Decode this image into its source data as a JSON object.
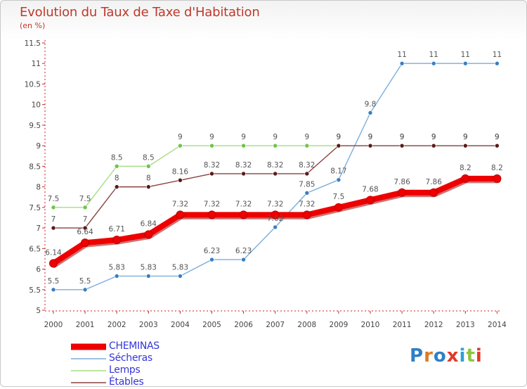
{
  "header": {
    "title": "Evolution du Taux de Taxe d'Habitation",
    "subtitle": "(en %)"
  },
  "chart_data": {
    "type": "line",
    "x": [
      2000,
      2001,
      2002,
      2003,
      2004,
      2005,
      2006,
      2007,
      2008,
      2009,
      2010,
      2011,
      2012,
      2013,
      2014
    ],
    "ylim": [
      5,
      11.5
    ],
    "yticks": [
      "5",
      "5.5",
      "6",
      "6.5",
      "7",
      "7.5",
      "8",
      "8.5",
      "9",
      "9.5",
      "10",
      "10.5",
      "11",
      "11.5"
    ],
    "xlabel": "",
    "ylabel": "",
    "grid": false,
    "legend_position": "bottom-left",
    "series": [
      {
        "name": "Sécheras",
        "color": "#7aaedb",
        "marker": "#3a7fc1",
        "values": [
          5.5,
          5.5,
          5.83,
          5.83,
          5.83,
          6.23,
          6.23,
          7.02,
          7.85,
          8.17,
          9.8,
          11,
          11,
          11,
          11
        ],
        "labels": [
          "5.5",
          "5.5",
          "5.83",
          "5.83",
          "5.83",
          "6.23",
          "6.23",
          "7.02",
          "7.85",
          "8.17",
          "9.8",
          "11",
          "11",
          "11",
          "11"
        ]
      },
      {
        "name": "Lemps",
        "color": "#a6dd84",
        "marker": "#6ec447",
        "values": [
          7.5,
          7.5,
          8.5,
          8.5,
          9,
          9,
          9,
          9,
          9,
          9,
          9,
          9,
          9,
          9,
          9
        ],
        "labels": [
          "7.5",
          "7.5",
          "8.5",
          "8.5",
          "9",
          "9",
          "9",
          "9",
          "9",
          "9",
          "9",
          "9",
          "9",
          "9",
          "9"
        ]
      },
      {
        "name": "Étables",
        "color": "#8a4040",
        "marker": "#5a1a1a",
        "values": [
          7,
          7,
          8,
          8,
          8.16,
          8.32,
          8.32,
          8.32,
          8.32,
          9,
          9,
          9,
          9,
          9,
          9
        ],
        "labels": [
          "7",
          "7",
          "8",
          "8",
          "8.16",
          "8.32",
          "8.32",
          "8.32",
          "8.32",
          "9",
          "9",
          "9",
          "9",
          "9",
          "9"
        ]
      },
      {
        "name": "CHEMINAS",
        "color": "#ee0000",
        "marker": "#ee0000",
        "values": [
          6.14,
          6.64,
          6.71,
          6.84,
          7.32,
          7.32,
          7.32,
          7.32,
          7.32,
          7.5,
          7.68,
          7.86,
          7.86,
          8.2,
          8.2
        ],
        "labels": [
          "6.14",
          "6.64",
          "6.71",
          "6.84",
          "7.32",
          "7.32",
          "7.32",
          "7.32",
          "7.32",
          "7.5",
          "7.68",
          "7.86",
          "7.86",
          "8.2",
          "8.2"
        ]
      }
    ]
  },
  "legend": [
    {
      "label": "CHEMINAS",
      "color": "#ee0000",
      "thick": true
    },
    {
      "label": "Sécheras",
      "color": "#7aaedb",
      "thick": false
    },
    {
      "label": "Lemps",
      "color": "#a6dd84",
      "thick": false
    },
    {
      "label": "Étables",
      "color": "#8a4040",
      "thick": false
    }
  ],
  "logo": {
    "text": "Proxiti",
    "letter_colors": [
      "#2f7fc4",
      "#e07b22",
      "#2f7fc4",
      "#e03b2a",
      "#2f9fd8",
      "#8dc63f",
      "#e03b2a"
    ]
  }
}
